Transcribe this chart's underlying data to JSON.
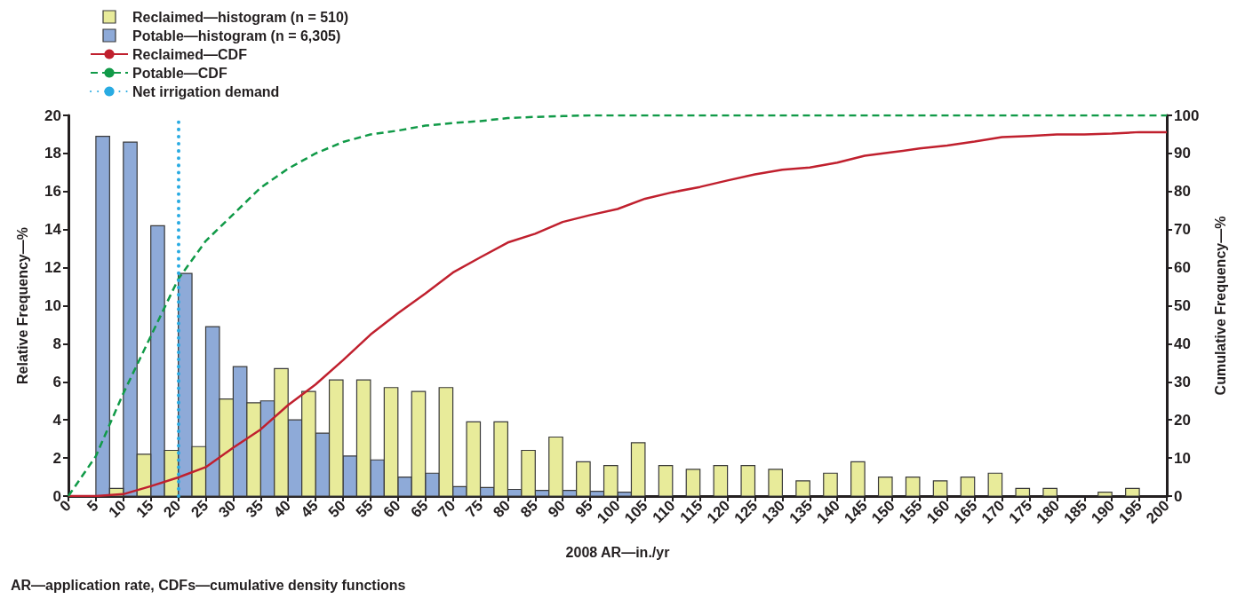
{
  "chart_data": {
    "type": "histogram",
    "xlabel": "2008 AR—in./yr",
    "ylabel": "Relative Frequency—%",
    "y2label": "Cumulative Frequency—%",
    "annotations": [
      "AR—application rate, CDFs—cumulative density functions"
    ],
    "bins": [
      0,
      5,
      10,
      15,
      20,
      25,
      30,
      35,
      40,
      45,
      50,
      55,
      60,
      65,
      70,
      75,
      80,
      85,
      90,
      95,
      100,
      105,
      110,
      115,
      120,
      125,
      130,
      135,
      140,
      145,
      150,
      155,
      160,
      165,
      170,
      175,
      180,
      185,
      190,
      195,
      200
    ],
    "series": [
      {
        "name": "Potable—histogram (n = 6,305)",
        "color": "#8eaad8",
        "values": [
          0,
          18.9,
          18.6,
          14.2,
          11.7,
          8.9,
          6.8,
          5.0,
          4.0,
          3.3,
          2.1,
          1.9,
          1.0,
          1.2,
          0.5,
          0.45,
          0.35,
          0.3,
          0.3,
          0.25,
          0.2,
          0,
          0,
          0,
          0,
          0,
          0,
          0,
          0,
          0,
          0,
          0,
          0,
          0,
          0,
          0,
          0,
          0,
          0,
          0
        ]
      },
      {
        "name": "Reclaimed—histogram (n = 510)",
        "color": "#e8eb9a",
        "values": [
          0,
          0.4,
          2.2,
          2.4,
          2.6,
          5.1,
          4.9,
          6.7,
          5.5,
          6.1,
          6.1,
          5.7,
          5.5,
          5.7,
          3.9,
          3.9,
          2.4,
          3.1,
          1.8,
          1.6,
          2.8,
          1.6,
          1.4,
          1.6,
          1.6,
          1.4,
          0.8,
          1.2,
          1.8,
          1.0,
          1.0,
          0.8,
          1.0,
          1.2,
          0.4,
          0.4,
          0,
          0.2,
          0.4,
          0
        ]
      },
      {
        "name": "Reclaimed—CDF",
        "type": "line",
        "axis": "y2",
        "color": "#c0202e",
        "line_style": "solid",
        "x": [
          0,
          5,
          10,
          15,
          20,
          25,
          30,
          35,
          40,
          45,
          50,
          55,
          60,
          65,
          70,
          75,
          80,
          85,
          90,
          95,
          100,
          105,
          110,
          115,
          120,
          125,
          130,
          135,
          140,
          145,
          150,
          155,
          160,
          165,
          170,
          175,
          180,
          185,
          190,
          195,
          200
        ],
        "values": [
          0,
          0,
          0.5,
          2.6,
          4.9,
          7.6,
          12.7,
          17.5,
          23.9,
          29.3,
          35.7,
          42.4,
          48,
          53.2,
          58.7,
          62.7,
          66.6,
          68.9,
          72,
          73.8,
          75.4,
          78.1,
          79.8,
          81.2,
          82.9,
          84.5,
          85.7,
          86.3,
          87.6,
          89.4,
          90.3,
          91.3,
          92.1,
          93.1,
          94.3,
          94.6,
          95,
          95,
          95.2,
          95.6,
          95.6
        ]
      },
      {
        "name": "Potable—CDF",
        "type": "line",
        "axis": "y2",
        "color": "#119a48",
        "line_style": "dashed",
        "x": [
          0,
          5,
          10,
          15,
          20,
          25,
          30,
          35,
          40,
          45,
          50,
          55,
          60,
          65,
          70,
          75,
          80,
          85,
          90,
          95,
          100,
          105,
          110,
          115,
          120,
          125,
          130,
          135,
          140,
          145,
          150,
          155,
          160,
          165,
          170,
          175,
          180,
          185,
          190,
          195,
          200
        ],
        "values": [
          0,
          10.5,
          27,
          42,
          57,
          67,
          74,
          81,
          86,
          90,
          93,
          95,
          96,
          97.3,
          98,
          98.5,
          99.3,
          99.6,
          99.8,
          100,
          100,
          100,
          100,
          100,
          100,
          100,
          100,
          100,
          100,
          100,
          100,
          100,
          100,
          100,
          100,
          100,
          100,
          100,
          100,
          100,
          100
        ]
      }
    ],
    "ref_lines": [
      {
        "axis": "x",
        "value": 20,
        "label": "Net irrigation demand",
        "color": "#29abe2",
        "line_style": "dotted"
      }
    ],
    "xlim": [
      0,
      200
    ],
    "xticks": [
      0,
      5,
      10,
      15,
      20,
      25,
      30,
      35,
      40,
      45,
      50,
      55,
      60,
      65,
      70,
      75,
      80,
      85,
      90,
      95,
      100,
      105,
      110,
      115,
      120,
      125,
      130,
      135,
      140,
      145,
      150,
      155,
      160,
      165,
      170,
      175,
      180,
      185,
      190,
      195,
      200
    ],
    "ylim": [
      0,
      20
    ],
    "yticks": [
      0,
      2,
      4,
      6,
      8,
      10,
      12,
      14,
      16,
      18,
      20
    ],
    "y2lim": [
      0,
      100
    ],
    "y2ticks": [
      0,
      10,
      20,
      30,
      40,
      50,
      60,
      70,
      80,
      90,
      100
    ],
    "grid": false,
    "legend": "top left"
  }
}
